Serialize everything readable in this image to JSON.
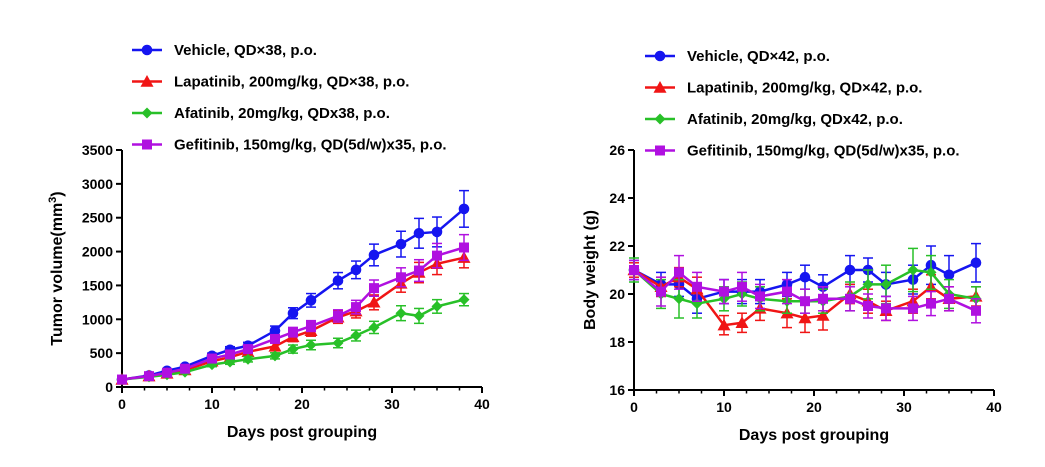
{
  "colors": {
    "vehicle": "#1515f0",
    "lapatinib": "#f01515",
    "afatinib": "#28c028",
    "gefitinib": "#b010e0"
  },
  "chart_data": [
    {
      "type": "line",
      "xlabel": "Days post grouping",
      "ylabel": "Tumor volume(mm",
      "ylabel_sup": "3",
      "ylabel_close": ")",
      "xlim": [
        0,
        40
      ],
      "ylim": [
        0,
        3500
      ],
      "xticks": [
        "0",
        "10",
        "20",
        "30",
        "40"
      ],
      "yticks": [
        "0",
        "500",
        "1000",
        "1500",
        "2000",
        "2500",
        "3000",
        "3500"
      ],
      "grid": false,
      "legend_position": "top",
      "series": [
        {
          "name": "Vehicle, QD×38, p.o.",
          "color_key": "vehicle",
          "marker": "circle",
          "x": [
            0,
            3,
            5,
            7,
            10,
            12,
            14,
            17,
            19,
            21,
            24,
            26,
            28,
            31,
            33,
            35,
            38
          ],
          "y": [
            110,
            170,
            240,
            300,
            460,
            550,
            610,
            830,
            1090,
            1280,
            1570,
            1730,
            1950,
            2110,
            2270,
            2290,
            2630
          ],
          "err": [
            15,
            20,
            25,
            30,
            40,
            45,
            50,
            70,
            80,
            100,
            120,
            130,
            160,
            190,
            220,
            220,
            270
          ]
        },
        {
          "name": "Lapatinib, 200mg/kg, QD×38, p.o.",
          "color_key": "lapatinib",
          "marker": "triangle",
          "x": [
            0,
            3,
            5,
            7,
            10,
            12,
            14,
            17,
            19,
            21,
            24,
            26,
            28,
            31,
            33,
            35,
            38
          ],
          "y": [
            110,
            160,
            200,
            250,
            380,
            440,
            520,
            600,
            740,
            830,
            1030,
            1120,
            1250,
            1530,
            1690,
            1820,
            1910
          ],
          "err": [
            15,
            20,
            25,
            30,
            40,
            45,
            50,
            60,
            70,
            80,
            90,
            100,
            110,
            130,
            150,
            160,
            150
          ]
        },
        {
          "name": "Afatinib, 20mg/kg, QDx38, p.o.",
          "color_key": "afatinib",
          "marker": "diamond",
          "x": [
            0,
            3,
            5,
            7,
            10,
            12,
            14,
            17,
            19,
            21,
            24,
            26,
            28,
            31,
            33,
            35,
            38
          ],
          "y": [
            110,
            150,
            180,
            220,
            330,
            370,
            410,
            460,
            560,
            620,
            650,
            760,
            880,
            1090,
            1050,
            1190,
            1290
          ],
          "err": [
            15,
            20,
            20,
            25,
            30,
            35,
            40,
            45,
            60,
            70,
            70,
            80,
            90,
            110,
            110,
            100,
            90
          ]
        },
        {
          "name": "Gefitinib, 150mg/kg, QD(5d/w)x35, p.o.",
          "color_key": "gefitinib",
          "marker": "square",
          "x": [
            0,
            3,
            5,
            7,
            10,
            12,
            14,
            17,
            19,
            21,
            24,
            26,
            28,
            31,
            33,
            35,
            38
          ],
          "y": [
            110,
            160,
            210,
            270,
            420,
            480,
            560,
            710,
            810,
            900,
            1050,
            1180,
            1460,
            1620,
            1720,
            1940,
            2060
          ],
          "err": [
            15,
            20,
            25,
            30,
            40,
            45,
            50,
            60,
            70,
            80,
            90,
            100,
            120,
            140,
            160,
            180,
            190
          ]
        }
      ]
    },
    {
      "type": "line",
      "xlabel": "Days post grouping",
      "ylabel": "Body weight (g)",
      "xlim": [
        0,
        40
      ],
      "ylim": [
        16,
        26
      ],
      "xticks": [
        "0",
        "10",
        "20",
        "30",
        "40"
      ],
      "yticks": [
        "16",
        "18",
        "20",
        "22",
        "24",
        "26"
      ],
      "grid": false,
      "legend_position": "top",
      "series": [
        {
          "name": "Vehicle, QD×42, p.o.",
          "color_key": "vehicle",
          "marker": "circle",
          "x": [
            0,
            3,
            5,
            7,
            10,
            12,
            14,
            17,
            19,
            21,
            24,
            26,
            28,
            31,
            33,
            35,
            38
          ],
          "y": [
            21.0,
            20.4,
            20.4,
            19.8,
            20.1,
            20.1,
            20.1,
            20.4,
            20.7,
            20.3,
            21.0,
            21.0,
            20.4,
            20.6,
            21.2,
            20.8,
            21.3
          ],
          "err": [
            0.4,
            0.5,
            0.5,
            0.6,
            0.5,
            0.5,
            0.5,
            0.5,
            0.5,
            0.5,
            0.6,
            0.5,
            0.5,
            0.6,
            0.8,
            0.8,
            0.8
          ]
        },
        {
          "name": "Lapatinib, 200mg/kg, QD×42, p.o.",
          "color_key": "lapatinib",
          "marker": "triangle",
          "x": [
            0,
            3,
            5,
            7,
            10,
            12,
            14,
            17,
            19,
            21,
            24,
            26,
            28,
            31,
            33,
            35,
            38
          ],
          "y": [
            21.0,
            20.3,
            20.7,
            20.2,
            18.7,
            18.8,
            19.4,
            19.2,
            19.0,
            19.1,
            20.0,
            19.7,
            19.3,
            19.7,
            20.3,
            19.8,
            19.9
          ],
          "err": [
            0.3,
            0.4,
            0.4,
            0.5,
            0.4,
            0.4,
            0.5,
            0.6,
            0.6,
            0.6,
            0.4,
            0.5,
            0.4,
            0.5,
            0.5,
            0.5,
            0.4
          ]
        },
        {
          "name": "Afatinib, 20mg/kg, QDx42, p.o.",
          "color_key": "afatinib",
          "marker": "diamond",
          "x": [
            0,
            3,
            5,
            7,
            10,
            12,
            14,
            17,
            19,
            21,
            24,
            26,
            28,
            31,
            33,
            35,
            38
          ],
          "y": [
            21.0,
            20.0,
            19.8,
            19.6,
            19.8,
            20.0,
            19.8,
            19.7,
            19.7,
            19.7,
            19.9,
            20.4,
            20.4,
            21.0,
            20.9,
            20.0,
            19.8
          ],
          "err": [
            0.5,
            0.6,
            0.8,
            0.6,
            0.5,
            0.5,
            0.5,
            0.5,
            0.5,
            0.5,
            0.6,
            0.6,
            0.8,
            0.9,
            0.7,
            0.6,
            0.5
          ]
        },
        {
          "name": "Gefitinib, 150mg/kg, QD(5d/w)x35, p.o.",
          "color_key": "gefitinib",
          "marker": "square",
          "x": [
            0,
            3,
            5,
            7,
            10,
            12,
            14,
            17,
            19,
            21,
            24,
            26,
            28,
            31,
            33,
            35,
            38
          ],
          "y": [
            21.0,
            20.1,
            20.9,
            20.3,
            20.1,
            20.3,
            19.9,
            20.1,
            19.7,
            19.8,
            19.8,
            19.5,
            19.4,
            19.4,
            19.6,
            19.8,
            19.3
          ],
          "err": [
            0.4,
            0.6,
            0.7,
            0.6,
            0.5,
            0.6,
            0.5,
            0.5,
            0.5,
            0.5,
            0.5,
            0.5,
            0.5,
            0.5,
            0.5,
            0.5,
            0.5
          ]
        }
      ]
    }
  ]
}
